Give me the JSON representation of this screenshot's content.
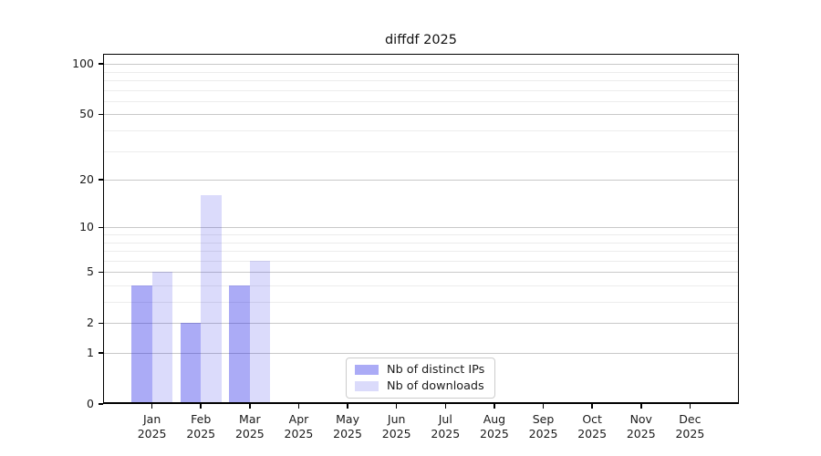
{
  "chart_data": {
    "type": "bar",
    "title": "diffdf 2025",
    "categories": [
      "Jan",
      "Feb",
      "Mar",
      "Apr",
      "May",
      "Jun",
      "Jul",
      "Aug",
      "Sep",
      "Oct",
      "Nov",
      "Dec"
    ],
    "year_label": "2025",
    "series": [
      {
        "name": "Nb of distinct IPs",
        "color": "rgba(13,13,229,0.35)",
        "values": [
          4,
          2,
          4,
          0,
          0,
          0,
          0,
          0,
          0,
          0,
          0,
          0
        ]
      },
      {
        "name": "Nb of downloads",
        "color": "rgba(13,13,229,0.15)",
        "values": [
          5,
          16,
          6,
          0,
          0,
          0,
          0,
          0,
          0,
          0,
          0,
          0
        ]
      }
    ],
    "yscale": "log1p",
    "ylim": [
      0,
      115
    ],
    "y_major_ticks": [
      0,
      1,
      2,
      5,
      10,
      20,
      50,
      100
    ],
    "y_minor_gridlines": [
      3,
      4,
      6,
      7,
      8,
      9,
      30,
      40,
      60,
      70,
      80,
      90
    ],
    "grid": true,
    "legend_position": "lower center"
  },
  "colors": {
    "major_grid": "#c9c9c9",
    "minor_grid": "#ececec",
    "spine": "#000000",
    "text": "#1a1a1a",
    "legend_border": "#cccccc",
    "background": "#ffffff"
  }
}
